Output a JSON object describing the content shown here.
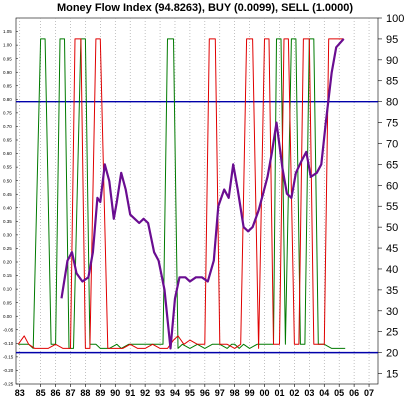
{
  "chart_data": {
    "type": "line",
    "title": "Money Flow Index (94.8263), BUY (0.0099), SELL (1.0000)",
    "x_tick_labels": [
      "83",
      "85",
      "86",
      "87",
      "88",
      "89",
      "90",
      "91",
      "92",
      "93",
      "94",
      "95",
      "96",
      "97",
      "98",
      "99",
      "00",
      "01",
      "02",
      "03",
      "04",
      "05",
      "06",
      "07"
    ],
    "x_tick_values": [
      1983.6,
      1985,
      1986,
      1987,
      1988,
      1989,
      1990,
      1991,
      1992,
      1993,
      1994,
      1995,
      1996,
      1997,
      1998,
      1999,
      2000,
      2001,
      2002,
      2003,
      2004,
      2005,
      2006,
      2007
    ],
    "xlim": [
      1983.35,
      2007.6
    ],
    "right_axis": {
      "ylim": [
        12.5,
        100
      ],
      "ticks": [
        15,
        20,
        25,
        30,
        35,
        40,
        45,
        50,
        55,
        60,
        65,
        70,
        75,
        80,
        85,
        90,
        95,
        100
      ]
    },
    "left_axis": {
      "ylim": [
        -0.25,
        1.1
      ],
      "ticks": [
        "-0.25",
        "-0.20",
        "-0.15",
        "-0.10",
        "-0.05",
        "0.00",
        "0.05",
        "0.10",
        "0.15",
        "0.20",
        "0.25",
        "0.30",
        "0.35",
        "0.40",
        "0.45",
        "0.50",
        "0.55",
        "0.60",
        "0.65",
        "0.70",
        "0.75",
        "0.80",
        "0.85",
        "0.90",
        "0.95",
        "1.00",
        "1.05"
      ],
      "tick_values": [
        -0.25,
        -0.2,
        -0.15,
        -0.1,
        -0.05,
        0,
        0.05,
        0.1,
        0.15,
        0.2,
        0.25,
        0.3,
        0.35,
        0.4,
        0.45,
        0.5,
        0.55,
        0.6,
        0.65,
        0.7,
        0.75,
        0.8,
        0.85,
        0.9,
        0.95,
        1.0,
        1.05
      ]
    },
    "reference_lines": [
      {
        "value": 80,
        "color": "#0000aa"
      },
      {
        "value": 20,
        "color": "#0000aa"
      }
    ],
    "series": [
      {
        "color": "#6a0d91",
        "axis": "right",
        "x": [
          1986.4,
          1986.8,
          1987.1,
          1987.4,
          1987.8,
          1988.2,
          1988.5,
          1988.8,
          1989.0,
          1989.3,
          1989.6,
          1989.9,
          1990.1,
          1990.4,
          1990.7,
          1991.0,
          1991.3,
          1991.6,
          1991.9,
          1992.2,
          1992.6,
          1992.9,
          1993.3,
          1993.7,
          1994.0,
          1994.3,
          1994.7,
          1995.0,
          1995.4,
          1995.8,
          1996.2,
          1996.6,
          1996.9,
          1997.3,
          1997.6,
          1997.9,
          1998.2,
          1998.6,
          1998.9,
          1999.2,
          1999.6,
          1999.9,
          2000.2,
          2000.5,
          2000.8,
          2001.2,
          2001.5,
          2001.8,
          2002.1,
          2002.5,
          2002.8,
          2003.1,
          2003.5,
          2003.8,
          2004.1,
          2004.5,
          2004.8,
          2005.3
        ],
        "values": [
          33,
          42,
          44,
          39,
          37,
          38,
          44,
          57,
          56,
          65,
          61,
          52,
          56,
          63,
          59,
          53,
          52,
          51,
          52,
          51,
          44,
          42,
          35,
          21,
          33,
          38,
          38,
          37,
          38,
          38,
          37,
          42,
          55,
          59,
          57,
          65,
          59,
          50,
          49,
          50,
          54,
          58,
          62,
          68,
          75,
          64,
          58,
          57,
          63,
          66,
          68,
          62,
          63,
          65,
          75,
          87,
          93,
          95
        ]
      },
      {
        "color": "#007a00",
        "axis": "right",
        "x": [
          1983.5,
          1984.2,
          1984.5,
          1985.0,
          1985.3,
          1985.7,
          1986.0,
          1986.3,
          1986.6,
          1986.9,
          1987.2,
          1987.7,
          1988.0,
          1988.3,
          1988.7,
          1989.0,
          1989.6,
          1990.1,
          1990.4,
          1990.9,
          1991.3,
          1991.8,
          1992.3,
          1992.8,
          1993.2,
          1993.5,
          1993.9,
          1994.2,
          1994.5,
          1995.0,
          1995.5,
          1996.0,
          1996.5,
          1997.0,
          1997.5,
          1997.8,
          1998.0,
          1998.3,
          1998.6,
          1999.0,
          1999.5,
          1999.8,
          2000.1,
          2000.6,
          2000.8,
          2001.1,
          2001.4,
          2001.8,
          2002.1,
          2002.4,
          2002.7,
          2003.0,
          2003.3,
          2003.6,
          2004.0,
          2004.5,
          2005.0,
          2005.4
        ],
        "values": [
          22,
          22,
          21,
          95,
          95,
          22,
          22,
          95,
          95,
          21,
          21,
          95,
          95,
          22,
          22,
          21,
          21,
          22,
          21,
          22,
          22,
          22,
          22,
          22,
          22,
          95,
          95,
          21,
          22,
          21,
          22,
          21,
          22,
          22,
          21,
          22,
          22,
          21,
          22,
          21,
          22,
          22,
          22,
          22,
          95,
          95,
          22,
          95,
          95,
          22,
          22,
          95,
          95,
          22,
          22,
          21,
          21,
          21
        ]
      },
      {
        "color": "#e00000",
        "axis": "right",
        "x": [
          1983.5,
          1983.9,
          1984.2,
          1984.6,
          1985.0,
          1985.5,
          1986.0,
          1986.5,
          1987.0,
          1987.3,
          1987.7,
          1988.0,
          1988.3,
          1988.7,
          1989.0,
          1989.5,
          1990.0,
          1990.5,
          1991.0,
          1991.5,
          1992.0,
          1992.5,
          1993.0,
          1993.5,
          1993.9,
          1994.2,
          1994.6,
          1995.0,
          1995.5,
          1996.0,
          1996.3,
          1996.7,
          1997.0,
          1997.5,
          1998.0,
          1998.4,
          1998.8,
          1999.2,
          1999.6,
          2000.0,
          2000.3,
          2000.6,
          2001.0,
          2001.3,
          2001.6,
          2002.0,
          2002.3,
          2002.6,
          2003.0,
          2003.3,
          2003.7,
          2004.0,
          2004.3,
          2004.6,
          2005.0,
          2005.3
        ],
        "values": [
          22,
          24,
          22,
          21,
          21,
          21,
          22,
          21,
          21,
          95,
          95,
          21,
          21,
          95,
          95,
          21,
          21,
          21,
          22,
          21,
          21,
          22,
          21,
          21,
          23,
          24,
          22,
          23,
          22,
          22,
          95,
          95,
          22,
          22,
          21,
          22,
          95,
          95,
          21,
          95,
          95,
          22,
          22,
          95,
          95,
          22,
          22,
          95,
          95,
          22,
          22,
          22,
          95,
          95,
          95,
          95
        ]
      }
    ]
  }
}
